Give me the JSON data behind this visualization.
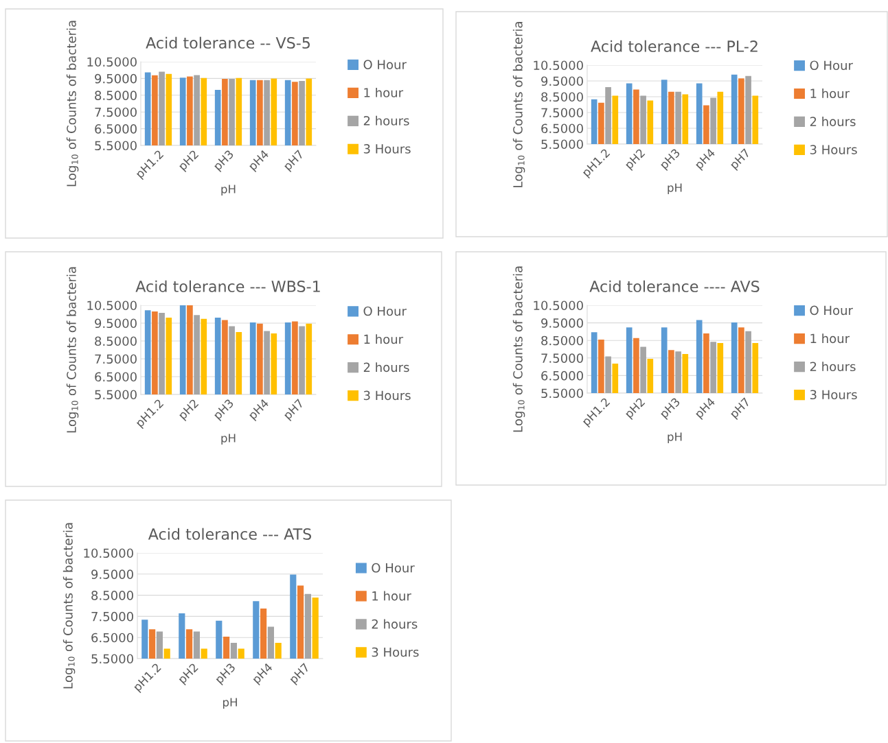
{
  "chart_data": [
    {
      "type": "bar",
      "title": "Acid tolerance -- VS-5",
      "xlabel": "pH",
      "ylabel": "Log$_{10}$ of Counts of bacteria",
      "categories": [
        "pH1.2",
        "pH2",
        "pH3",
        "pH4",
        "pH7"
      ],
      "ylim": [
        5.5,
        10.5
      ],
      "yticks": [
        {
          "value": 5.5,
          "label": "5.5000"
        },
        {
          "value": 6.5,
          "label": "6.5000"
        },
        {
          "value": 7.5,
          "label": "7.5000"
        },
        {
          "value": 8.5,
          "label": "8.5000"
        },
        {
          "value": 9.5,
          "label": "9.5000"
        },
        {
          "value": 10.5,
          "label": "10.5000"
        }
      ],
      "grid": "y",
      "legend": "right",
      "series": [
        {
          "name": "O Hour",
          "color": "#5b9bd5",
          "values": [
            9.86,
            9.55,
            8.82,
            9.4,
            9.4
          ]
        },
        {
          "name": "1 hour",
          "color": "#ed7d31",
          "values": [
            9.69,
            9.62,
            9.48,
            9.4,
            9.3
          ]
        },
        {
          "name": "2 hours",
          "color": "#a5a5a5",
          "values": [
            9.91,
            9.7,
            9.48,
            9.4,
            9.35
          ]
        },
        {
          "name": "3 Hours",
          "color": "#ffc000",
          "values": [
            9.77,
            9.53,
            9.53,
            9.5,
            9.5
          ]
        }
      ]
    },
    {
      "type": "bar",
      "title": "Acid tolerance --- PL-2",
      "xlabel": "pH",
      "ylabel": "Log$_{10}$ of Counts of bacteria",
      "categories": [
        "pH1.2",
        "pH2",
        "pH3",
        "pH4",
        "pH7"
      ],
      "ylim": [
        5.5,
        10.5
      ],
      "yticks": [
        {
          "value": 5.5,
          "label": "5.5000"
        },
        {
          "value": 6.5,
          "label": "6.5000"
        },
        {
          "value": 7.5,
          "label": "7.5000"
        },
        {
          "value": 8.5,
          "label": "8.5000"
        },
        {
          "value": 9.5,
          "label": "9.5000"
        },
        {
          "value": 10.5,
          "label": "10.5000"
        }
      ],
      "grid": "y",
      "legend": "right",
      "series": [
        {
          "name": "O Hour",
          "color": "#5b9bd5",
          "values": [
            8.34,
            9.35,
            9.58,
            9.35,
            9.9
          ]
        },
        {
          "name": "1 hour",
          "color": "#ed7d31",
          "values": [
            8.12,
            8.96,
            8.81,
            7.96,
            9.66
          ]
        },
        {
          "name": "2 hours",
          "color": "#a5a5a5",
          "values": [
            9.11,
            8.57,
            8.81,
            8.44,
            9.81
          ]
        },
        {
          "name": "3 Hours",
          "color": "#ffc000",
          "values": [
            8.57,
            8.26,
            8.65,
            8.81,
            8.57
          ]
        }
      ]
    },
    {
      "type": "bar",
      "title": "Acid tolerance --- WBS-1",
      "xlabel": "pH",
      "ylabel": "Log$_{10}$ of Counts of bacteria",
      "categories": [
        "pH1.2",
        "pH2",
        "pH3",
        "pH4",
        "pH7"
      ],
      "ylim": [
        5.5,
        10.5
      ],
      "yticks": [
        {
          "value": 5.5,
          "label": "5.5000"
        },
        {
          "value": 6.5,
          "label": "6.5000"
        },
        {
          "value": 7.5,
          "label": "7.5000"
        },
        {
          "value": 8.5,
          "label": "8.5000"
        },
        {
          "value": 9.5,
          "label": "9.5000"
        },
        {
          "value": 10.5,
          "label": "10.5000"
        }
      ],
      "grid": "y",
      "legend": "right",
      "series": [
        {
          "name": "O Hour",
          "color": "#5b9bd5",
          "values": [
            10.22,
            10.5,
            9.81,
            9.54,
            9.54
          ]
        },
        {
          "name": "1 hour",
          "color": "#ed7d31",
          "values": [
            10.15,
            10.5,
            9.67,
            9.47,
            9.6
          ]
        },
        {
          "name": "2 hours",
          "color": "#a5a5a5",
          "values": [
            10.08,
            9.95,
            9.33,
            9.06,
            9.33
          ]
        },
        {
          "name": "3 Hours",
          "color": "#ffc000",
          "values": [
            9.81,
            9.74,
            9.0,
            8.92,
            9.47
          ]
        }
      ]
    },
    {
      "type": "bar",
      "title": "Acid tolerance ---- AVS",
      "xlabel": "pH",
      "ylabel": "Log$_{10}$ of Counts of bacteria",
      "categories": [
        "pH1.2",
        "pH2",
        "pH3",
        "pH4",
        "pH7"
      ],
      "ylim": [
        5.5,
        10.5
      ],
      "yticks": [
        {
          "value": 5.5,
          "label": "5.5000"
        },
        {
          "value": 6.5,
          "label": "6.5000"
        },
        {
          "value": 7.5,
          "label": "7.5000"
        },
        {
          "value": 8.5,
          "label": "8.5000"
        },
        {
          "value": 9.5,
          "label": "9.5000"
        },
        {
          "value": 10.5,
          "label": "10.5000"
        }
      ],
      "grid": "y",
      "legend": "right",
      "series": [
        {
          "name": "O Hour",
          "color": "#5b9bd5",
          "values": [
            8.97,
            9.24,
            9.24,
            9.66,
            9.52
          ]
        },
        {
          "name": "1 hour",
          "color": "#ed7d31",
          "values": [
            8.55,
            8.63,
            7.95,
            8.9,
            9.24
          ]
        },
        {
          "name": "2 hours",
          "color": "#a5a5a5",
          "values": [
            7.59,
            8.14,
            7.87,
            8.42,
            9.03
          ]
        },
        {
          "name": "3 Hours",
          "color": "#ffc000",
          "values": [
            7.18,
            7.45,
            7.73,
            8.35,
            8.35
          ]
        }
      ]
    },
    {
      "type": "bar",
      "title": "Acid tolerance --- ATS",
      "xlabel": "pH",
      "ylabel": "Log$_{10}$ of Counts of bacteria",
      "categories": [
        "pH1.2",
        "pH2",
        "pH3",
        "pH4",
        "pH7"
      ],
      "ylim": [
        5.5,
        10.5
      ],
      "yticks": [
        {
          "value": 5.5,
          "label": "5.5000"
        },
        {
          "value": 6.5,
          "label": "6.5000"
        },
        {
          "value": 7.5,
          "label": "7.5000"
        },
        {
          "value": 8.5,
          "label": "8.5000"
        },
        {
          "value": 9.5,
          "label": "9.5000"
        },
        {
          "value": 10.5,
          "label": "10.5000"
        }
      ],
      "grid": "y",
      "legend": "right",
      "series": [
        {
          "name": "O Hour",
          "color": "#5b9bd5",
          "values": [
            7.34,
            7.64,
            7.29,
            8.22,
            9.48
          ]
        },
        {
          "name": "1 hour",
          "color": "#ed7d31",
          "values": [
            6.89,
            6.89,
            6.54,
            7.87,
            8.96
          ]
        },
        {
          "name": "2 hours",
          "color": "#a5a5a5",
          "values": [
            6.78,
            6.78,
            6.25,
            7.01,
            8.56
          ]
        },
        {
          "name": "3 Hours",
          "color": "#ffc000",
          "values": [
            5.97,
            5.97,
            5.97,
            6.25,
            8.39
          ]
        }
      ]
    }
  ]
}
